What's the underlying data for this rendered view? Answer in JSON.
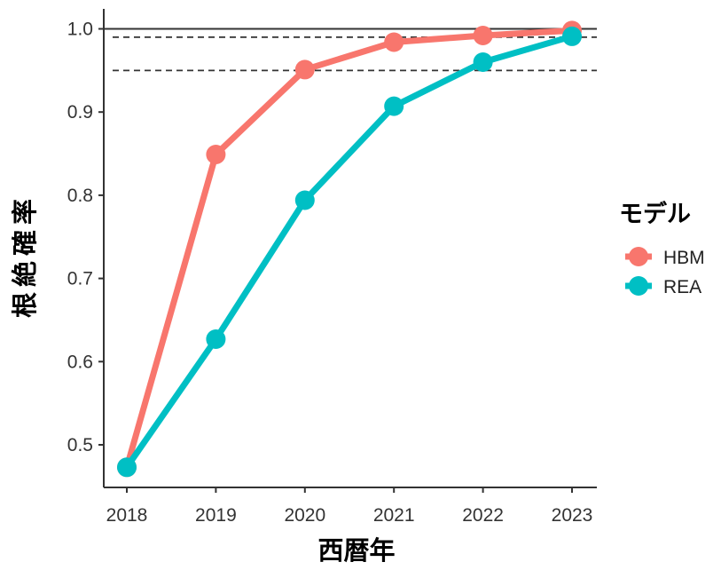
{
  "chart_data": {
    "type": "line",
    "title": "",
    "xlabel": "西暦年",
    "ylabel": "根絶確率",
    "x": [
      2018,
      2019,
      2020,
      2021,
      2022,
      2023
    ],
    "x_tick_labels": [
      "2018",
      "2019",
      "2020",
      "2021",
      "2022",
      "2023"
    ],
    "y_tick_labels": [
      "0.5",
      "0.6",
      "0.7",
      "0.8",
      "0.9",
      "1.0"
    ],
    "y_ticks": [
      0.5,
      0.6,
      0.7,
      0.8,
      0.9,
      1.0
    ],
    "ylim": [
      0.47,
      1.0
    ],
    "grid": false,
    "legend_position": "right",
    "legend_title": "モデル",
    "series": [
      {
        "name": "HBM",
        "color": "#F8766D",
        "values": [
          0.473,
          0.849,
          0.951,
          0.984,
          0.992,
          0.998
        ]
      },
      {
        "name": "REA",
        "color": "#00BFC4",
        "values": [
          0.473,
          0.627,
          0.794,
          0.907,
          0.96,
          0.991
        ]
      }
    ],
    "reference_lines": [
      {
        "y": 1.0,
        "style": "solid"
      },
      {
        "y": 0.99,
        "style": "dashed"
      },
      {
        "y": 0.95,
        "style": "dashed"
      }
    ]
  }
}
